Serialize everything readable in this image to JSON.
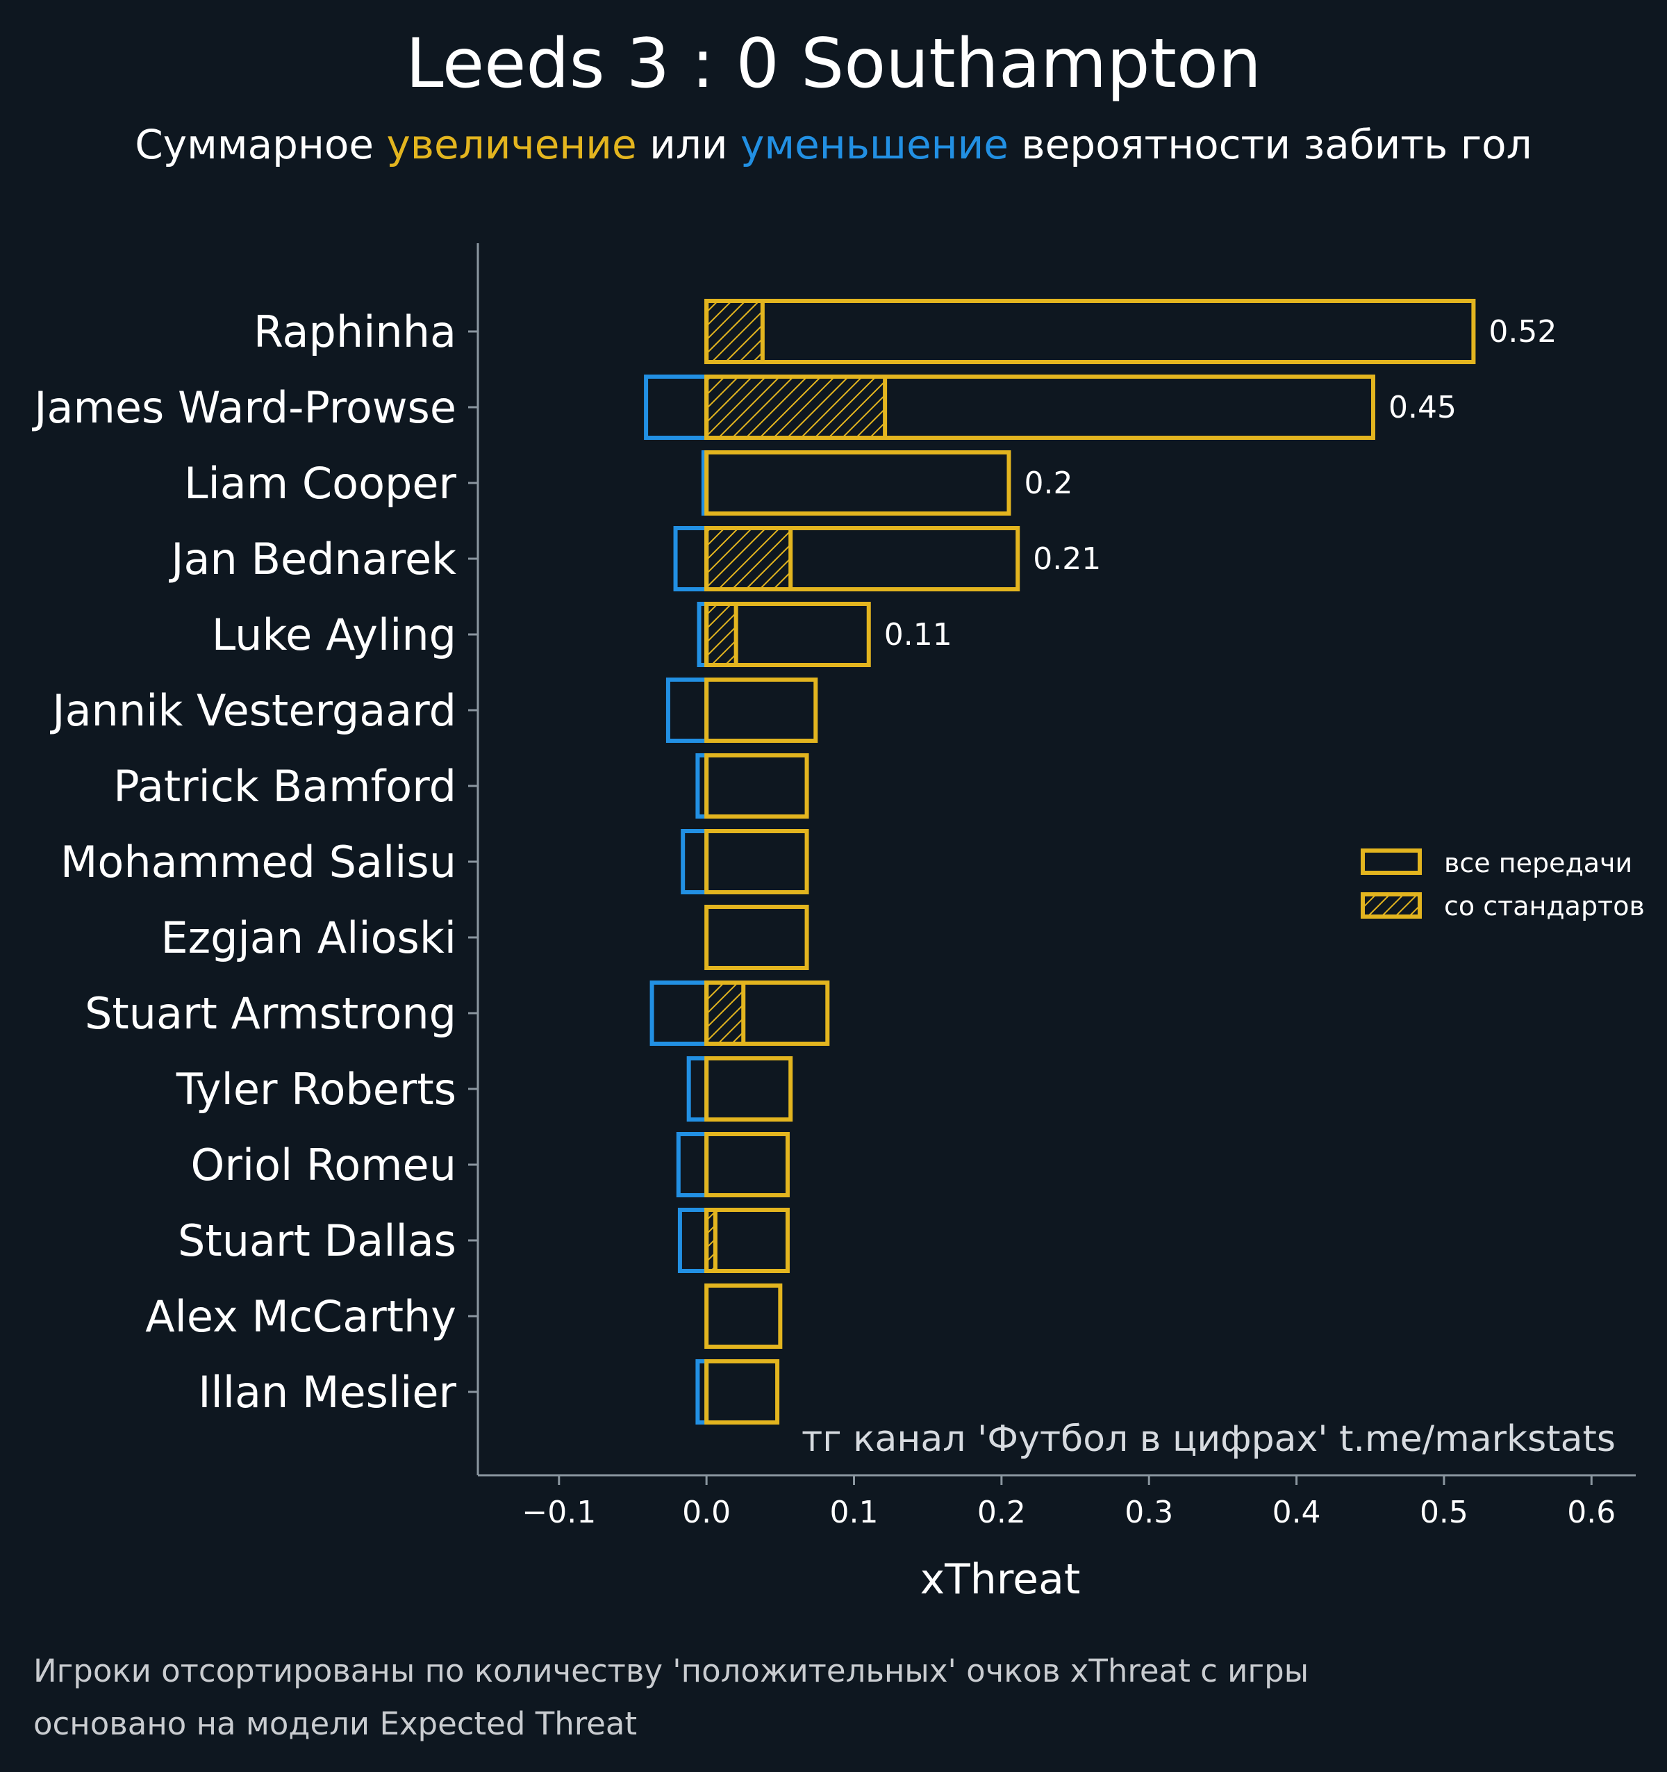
{
  "chart_data": {
    "type": "bar",
    "orientation": "horizontal",
    "title": "Leeds 3 : 0 Southampton",
    "subtitle": {
      "prefix": "Суммарное ",
      "positive_word": "увеличение",
      "middle": " или ",
      "negative_word": "уменьшение",
      "suffix": " вероятности забить гол"
    },
    "xlabel": "xThreat",
    "xlim": [
      -0.155,
      0.63
    ],
    "xticks": [
      -0.1,
      0.0,
      0.1,
      0.2,
      0.3,
      0.4,
      0.5,
      0.6
    ],
    "xtick_labels": [
      "−0.1",
      "0.0",
      "0.1",
      "0.2",
      "0.3",
      "0.4",
      "0.5",
      "0.6"
    ],
    "categories": [
      "Raphinha",
      "James Ward-Prowse",
      "Liam Cooper",
      "Jan Bednarek",
      "Luke Ayling",
      "Jannik Vestergaard",
      "Patrick Bamford",
      "Mohammed Salisu",
      "Ezgjan Alioski",
      "Stuart Armstrong",
      "Tyler Roberts",
      "Oriol Romeu",
      "Stuart Dallas",
      "Alex McCarthy",
      "Illan Meslier"
    ],
    "series": [
      {
        "name": "все передачи (положительные)",
        "values": [
          0.52,
          0.452,
          0.205,
          0.211,
          0.11,
          0.074,
          0.068,
          0.068,
          0.068,
          0.082,
          0.057,
          0.055,
          0.055,
          0.05,
          0.048
        ]
      },
      {
        "name": "со стандартов",
        "values": [
          0.038,
          0.121,
          0.0,
          0.057,
          0.02,
          0.0,
          0.0,
          0.0,
          0.0,
          0.025,
          0.0,
          0.0,
          0.006,
          0.0,
          0.0
        ]
      },
      {
        "name": "все передачи (отрицательные)",
        "values": [
          0.0,
          -0.041,
          -0.002,
          -0.021,
          -0.005,
          -0.026,
          -0.006,
          -0.016,
          0.0,
          -0.037,
          -0.012,
          -0.019,
          -0.018,
          0.0,
          -0.006
        ]
      }
    ],
    "value_labels": [
      "0.52",
      "0.45",
      "0.2",
      "0.21",
      "0.11"
    ],
    "legend": {
      "placement": "right",
      "items": [
        "все передачи",
        "со стандартов"
      ]
    },
    "colors": {
      "background": "#0e1720",
      "positive": "#e3b51f",
      "negative": "#2290e3",
      "axis": "#8a969f",
      "text": "#ffffff"
    }
  },
  "watermark": "тг канал 'Футбол в цифрах'  t.me/markstats",
  "footnotes": [
    "Игроки отсортированы по количеству 'положительных' очков xThreat с игры",
    "основано на модели Expected Threat"
  ]
}
